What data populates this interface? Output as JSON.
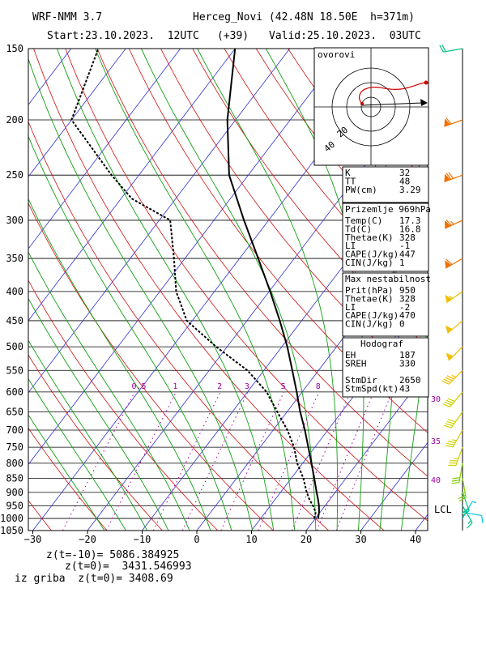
{
  "header": {
    "model": "WRF-NMM 3.7",
    "station": "Herceg_Novi (42.48N 18.50E  h=371m)",
    "start": "Start:23.10.2023.  12UTC",
    "lead": "(+39)",
    "valid": "Valid:25.10.2023.  03UTC"
  },
  "footer": {
    "line1": "z(t=-10)= 5086.384925",
    "line2": "z(t=0)=  3431.546993",
    "line3": "iz griba  z(t=0)= 3408.69"
  },
  "hodograph": {
    "label": "ovorovi",
    "ring_labels": [
      "20",
      "40"
    ]
  },
  "indices": [
    {
      "title": "",
      "rows": [
        [
          "K",
          "32"
        ],
        [
          "TT",
          "48"
        ],
        [
          "PW(cm)",
          "3.29"
        ]
      ]
    },
    {
      "title": "Prizemlje 969hPa",
      "rows": [
        [
          "Temp(C)",
          "17.3"
        ],
        [
          "Td(C)",
          "16.8"
        ],
        [
          "Thetae(K)",
          "328"
        ],
        [
          "LI",
          "-1"
        ],
        [
          "CAPE(J/kg)",
          "447"
        ],
        [
          "CIN(J/kg)",
          "1"
        ]
      ]
    },
    {
      "title": "Max nestabilnost",
      "rows": [
        [
          "Prit(hPa)",
          "950"
        ],
        [
          "Thetae(K)",
          "328"
        ],
        [
          "LI",
          "-2"
        ],
        [
          "CAPE(J/kg)",
          "470"
        ],
        [
          "CIN(J/kg)",
          "0"
        ]
      ]
    },
    {
      "title": "Hodograf",
      "rows": [
        [
          "EH",
          "187"
        ],
        [
          "SREH",
          "330"
        ],
        [
          "",
          ""
        ],
        [
          "StmDir",
          "2650"
        ],
        [
          "StmSpd(kt)",
          "43"
        ]
      ]
    }
  ],
  "colors": {
    "isotherm": "#3030d0",
    "dry_adiabat": "#d01010",
    "moist_adiabat": "#10a010",
    "mixing_ratio": "#a000a0",
    "temperature": "#000000",
    "dewpoint": "#000000"
  },
  "chart_data": {
    "type": "skew-t",
    "y_axis": {
      "quantity": "pressure (hPa)",
      "scale": "log",
      "range": [
        1050,
        150
      ],
      "ticks": [
        150,
        200,
        250,
        300,
        350,
        400,
        450,
        500,
        550,
        600,
        650,
        700,
        750,
        800,
        850,
        900,
        950,
        1000,
        1050
      ]
    },
    "x_axis": {
      "quantity": "temperature (C)",
      "range": [
        -30,
        42
      ],
      "ticks": [
        -30,
        -20,
        -10,
        0,
        10,
        20,
        30,
        40
      ]
    },
    "mixing_ratio_labels": [
      "0.5",
      "1",
      "2",
      "3",
      "5",
      "8"
    ],
    "theta_labels": [
      "30",
      "35",
      "40"
    ],
    "lcl_label": "LCL",
    "temperature_profile": [
      {
        "p": 1000,
        "t": 20.5
      },
      {
        "p": 975,
        "t": 19.8
      },
      {
        "p": 950,
        "t": 18.9
      },
      {
        "p": 925,
        "t": 17.8
      },
      {
        "p": 900,
        "t": 16.6
      },
      {
        "p": 850,
        "t": 14.2
      },
      {
        "p": 800,
        "t": 11.6
      },
      {
        "p": 750,
        "t": 8.8
      },
      {
        "p": 700,
        "t": 5.8
      },
      {
        "p": 650,
        "t": 2.4
      },
      {
        "p": 600,
        "t": -1.0
      },
      {
        "p": 550,
        "t": -4.8
      },
      {
        "p": 500,
        "t": -9.0
      },
      {
        "p": 450,
        "t": -14.0
      },
      {
        "p": 400,
        "t": -19.8
      },
      {
        "p": 350,
        "t": -26.6
      },
      {
        "p": 300,
        "t": -34.5
      },
      {
        "p": 250,
        "t": -43.5
      },
      {
        "p": 200,
        "t": -51.5
      },
      {
        "p": 150,
        "t": -60.0
      }
    ],
    "dewpoint_profile": [
      {
        "p": 1000,
        "t": 19.8
      },
      {
        "p": 975,
        "t": 19.2
      },
      {
        "p": 950,
        "t": 17.8
      },
      {
        "p": 925,
        "t": 16.2
      },
      {
        "p": 900,
        "t": 14.8
      },
      {
        "p": 850,
        "t": 12.2
      },
      {
        "p": 800,
        "t": 9.0
      },
      {
        "p": 750,
        "t": 6.2
      },
      {
        "p": 700,
        "t": 2.6
      },
      {
        "p": 650,
        "t": -1.8
      },
      {
        "p": 600,
        "t": -6.5
      },
      {
        "p": 550,
        "t": -13.0
      },
      {
        "p": 500,
        "t": -22.0
      },
      {
        "p": 450,
        "t": -31.0
      },
      {
        "p": 400,
        "t": -37.0
      },
      {
        "p": 350,
        "t": -42.0
      },
      {
        "p": 300,
        "t": -48.0
      },
      {
        "p": 275,
        "t": -58.0
      },
      {
        "p": 250,
        "t": -65.0
      },
      {
        "p": 200,
        "t": -80.0
      },
      {
        "p": 150,
        "t": -85.0
      }
    ],
    "wind_barbs": [
      {
        "p": 1000,
        "dir": 30,
        "spd": 5
      },
      {
        "p": 975,
        "dir": 100,
        "spd": 10
      },
      {
        "p": 950,
        "dir": 150,
        "spd": 15
      },
      {
        "p": 900,
        "dir": 160,
        "spd": 20
      },
      {
        "p": 850,
        "dir": 170,
        "spd": 25
      },
      {
        "p": 800,
        "dir": 190,
        "spd": 30
      },
      {
        "p": 750,
        "dir": 200,
        "spd": 35
      },
      {
        "p": 700,
        "dir": 210,
        "spd": 35
      },
      {
        "p": 650,
        "dir": 215,
        "spd": 40
      },
      {
        "p": 600,
        "dir": 220,
        "spd": 40
      },
      {
        "p": 550,
        "dir": 225,
        "spd": 45
      },
      {
        "p": 500,
        "dir": 225,
        "spd": 50
      },
      {
        "p": 450,
        "dir": 230,
        "spd": 50
      },
      {
        "p": 400,
        "dir": 235,
        "spd": 55
      },
      {
        "p": 350,
        "dir": 240,
        "spd": 60
      },
      {
        "p": 300,
        "dir": 245,
        "spd": 65
      },
      {
        "p": 250,
        "dir": 250,
        "spd": 70
      },
      {
        "p": 200,
        "dir": 250,
        "spd": 60
      },
      {
        "p": 150,
        "dir": 260,
        "spd": 20
      }
    ]
  }
}
